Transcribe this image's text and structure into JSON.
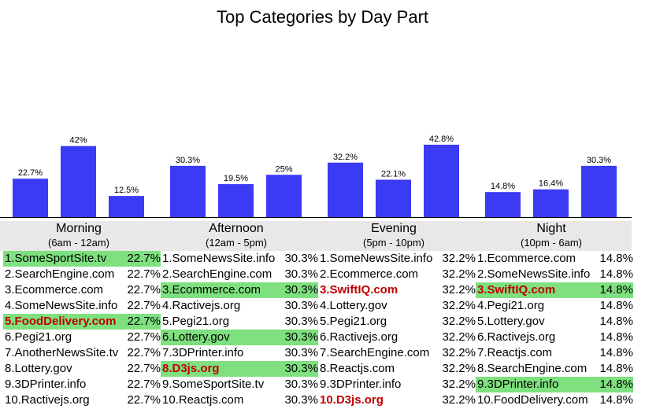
{
  "chart_data": {
    "type": "bar",
    "title": "Top Categories by Day Part",
    "ylim": [
      0,
      50
    ],
    "colors": {
      "bar": "#3b3bf5",
      "highlight": "#7ee07e",
      "emphasis": "#c00000",
      "band": "#e8e8e8"
    },
    "groups": [
      {
        "name": "Morning",
        "range": "(6am - 12am)",
        "values": [
          22.7,
          42,
          12.5
        ],
        "labels": [
          "22.7%",
          "42%",
          "12.5%"
        ]
      },
      {
        "name": "Afternoon",
        "range": "(12am - 5pm)",
        "values": [
          30.3,
          19.5,
          25
        ],
        "labels": [
          "30.3%",
          "19.5%",
          "25%"
        ]
      },
      {
        "name": "Evening",
        "range": "(5pm - 10pm)",
        "values": [
          32.2,
          22.1,
          42.8
        ],
        "labels": [
          "32.2%",
          "22.1%",
          "42.8%"
        ]
      },
      {
        "name": "Night",
        "range": "(10pm - 6am)",
        "values": [
          14.8,
          16.4,
          30.3
        ],
        "labels": [
          "14.8%",
          "16.4%",
          "30.3%"
        ]
      }
    ],
    "lists": [
      [
        {
          "label": "1.SomeSportSite.tv",
          "pct": "22.7%",
          "highlight": true,
          "emphasis": false
        },
        {
          "label": "2.SearchEngine.com",
          "pct": "22.7%",
          "highlight": false,
          "emphasis": false
        },
        {
          "label": "3.Ecommerce.com",
          "pct": "22.7%",
          "highlight": false,
          "emphasis": false
        },
        {
          "label": "4.SomeNewsSite.info",
          "pct": "22.7%",
          "highlight": false,
          "emphasis": false
        },
        {
          "label": "5.FoodDelivery.com",
          "pct": "22.7%",
          "highlight": true,
          "emphasis": true
        },
        {
          "label": "6.Pegi21.org",
          "pct": "22.7%",
          "highlight": false,
          "emphasis": false
        },
        {
          "label": "7.AnotherNewsSite.tv",
          "pct": "22.7%",
          "highlight": false,
          "emphasis": false
        },
        {
          "label": "8.Lottery.gov",
          "pct": "22.7%",
          "highlight": false,
          "emphasis": false
        },
        {
          "label": "9.3DPrinter.info",
          "pct": "22.7%",
          "highlight": false,
          "emphasis": false
        },
        {
          "label": "10.Ractivejs.org",
          "pct": "22.7%",
          "highlight": false,
          "emphasis": false
        }
      ],
      [
        {
          "label": "1.SomeNewsSite.info",
          "pct": "30.3%",
          "highlight": false,
          "emphasis": false
        },
        {
          "label": "2.SearchEngine.com",
          "pct": "30.3%",
          "highlight": false,
          "emphasis": false
        },
        {
          "label": "3.Ecommerce.com",
          "pct": "30.3%",
          "highlight": true,
          "emphasis": false
        },
        {
          "label": "4.Ractivejs.org",
          "pct": "30.3%",
          "highlight": false,
          "emphasis": false
        },
        {
          "label": "5.Pegi21.org",
          "pct": "30.3%",
          "highlight": false,
          "emphasis": false
        },
        {
          "label": "6.Lottery.gov",
          "pct": "30.3%",
          "highlight": true,
          "emphasis": false
        },
        {
          "label": "7.3DPrinter.info",
          "pct": "30.3%",
          "highlight": false,
          "emphasis": false
        },
        {
          "label": "8.D3js.org",
          "pct": "30.3%",
          "highlight": true,
          "emphasis": true
        },
        {
          "label": "9.SomeSportSite.tv",
          "pct": "30.3%",
          "highlight": false,
          "emphasis": false
        },
        {
          "label": "10.Reactjs.com",
          "pct": "30.3%",
          "highlight": false,
          "emphasis": false
        }
      ],
      [
        {
          "label": "1.SomeNewsSite.info",
          "pct": "32.2%",
          "highlight": false,
          "emphasis": false
        },
        {
          "label": "2.Ecommerce.com",
          "pct": "32.2%",
          "highlight": false,
          "emphasis": false
        },
        {
          "label": "3.SwiftIQ.com",
          "pct": "32.2%",
          "highlight": false,
          "emphasis": true
        },
        {
          "label": "4.Lottery.gov",
          "pct": "32.2%",
          "highlight": false,
          "emphasis": false
        },
        {
          "label": "5.Pegi21.org",
          "pct": "32.2%",
          "highlight": false,
          "emphasis": false
        },
        {
          "label": "6.Ractivejs.org",
          "pct": "32.2%",
          "highlight": false,
          "emphasis": false
        },
        {
          "label": "7.SearchEngine.com",
          "pct": "32.2%",
          "highlight": false,
          "emphasis": false
        },
        {
          "label": "8.Reactjs.com",
          "pct": "32.2%",
          "highlight": false,
          "emphasis": false
        },
        {
          "label": "9.3DPrinter.info",
          "pct": "32.2%",
          "highlight": false,
          "emphasis": false
        },
        {
          "label": "10.D3js.org",
          "pct": "32.2%",
          "highlight": false,
          "emphasis": true
        }
      ],
      [
        {
          "label": "1.Ecommerce.com",
          "pct": "14.8%",
          "highlight": false,
          "emphasis": false
        },
        {
          "label": "2.SomeNewsSite.info",
          "pct": "14.8%",
          "highlight": false,
          "emphasis": false
        },
        {
          "label": "3.SwiftIQ.com",
          "pct": "14.8%",
          "highlight": true,
          "emphasis": true
        },
        {
          "label": "4.Pegi21.org",
          "pct": "14.8%",
          "highlight": false,
          "emphasis": false
        },
        {
          "label": "5.Lottery.gov",
          "pct": "14.8%",
          "highlight": false,
          "emphasis": false
        },
        {
          "label": "6.Ractivejs.org",
          "pct": "14.8%",
          "highlight": false,
          "emphasis": false
        },
        {
          "label": "7.Reactjs.com",
          "pct": "14.8%",
          "highlight": false,
          "emphasis": false
        },
        {
          "label": "8.SearchEngine.com",
          "pct": "14.8%",
          "highlight": false,
          "emphasis": false
        },
        {
          "label": "9.3DPrinter.info",
          "pct": "14.8%",
          "highlight": true,
          "emphasis": false
        },
        {
          "label": "10.FoodDelivery.com",
          "pct": "14.8%",
          "highlight": false,
          "emphasis": false
        }
      ]
    ]
  }
}
